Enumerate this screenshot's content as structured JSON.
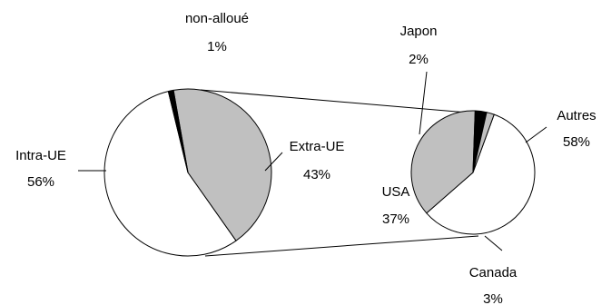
{
  "chart_data": [
    {
      "type": "pie",
      "categories": [
        "Intra-UE",
        "Extra-UE",
        "non-alloué"
      ],
      "values": [
        56,
        43,
        1
      ],
      "value_labels": [
        "56%",
        "43%",
        "1%"
      ],
      "colors": [
        "#ffffff",
        "#c0c0c0",
        "#000000"
      ]
    },
    {
      "type": "pie",
      "categories": [
        "Autres",
        "USA",
        "Canada",
        "Japon"
      ],
      "values": [
        58,
        37,
        3,
        2
      ],
      "value_labels": [
        "58%",
        "37%",
        "3%",
        "2%"
      ],
      "colors": [
        "#ffffff",
        "#c0c0c0",
        "#000000",
        "#c0c0c0"
      ]
    }
  ]
}
